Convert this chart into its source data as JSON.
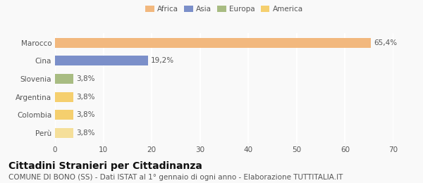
{
  "categories": [
    "Marocco",
    "Cina",
    "Slovenia",
    "Argentina",
    "Colombia",
    "Perù"
  ],
  "values": [
    65.4,
    19.2,
    3.8,
    3.8,
    3.8,
    3.8
  ],
  "labels": [
    "65,4%",
    "19,2%",
    "3,8%",
    "3,8%",
    "3,8%",
    "3,8%"
  ],
  "bar_colors": [
    "#f2b87e",
    "#7b8fc9",
    "#a8bc82",
    "#f5cf6e",
    "#f5cf6e",
    "#f5df9a"
  ],
  "legend_labels": [
    "Africa",
    "Asia",
    "Europa",
    "America"
  ],
  "legend_colors": [
    "#f2b87e",
    "#7b8fc9",
    "#a8bc82",
    "#f5cf6e"
  ],
  "xlim": [
    0,
    70
  ],
  "xticks": [
    0,
    10,
    20,
    30,
    40,
    50,
    60,
    70
  ],
  "title": "Cittadini Stranieri per Cittadinanza",
  "subtitle": "COMUNE DI BONO (SS) - Dati ISTAT al 1° gennaio di ogni anno - Elaborazione TUTTITALIA.IT",
  "bg_color": "#f9f9f9",
  "grid_color": "#ffffff",
  "title_fontsize": 10,
  "subtitle_fontsize": 7.5,
  "label_fontsize": 7.5,
  "tick_fontsize": 7.5
}
